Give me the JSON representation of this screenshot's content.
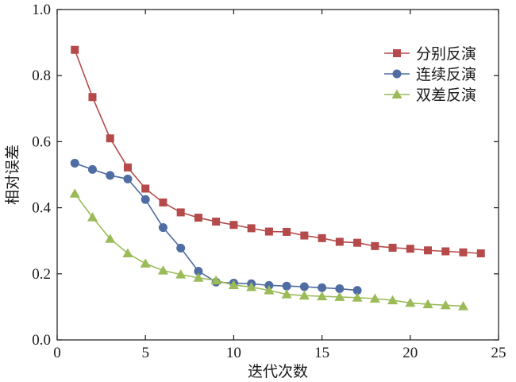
{
  "chart_data": {
    "type": "line",
    "title": "",
    "xlabel": "迭代次数",
    "ylabel": "相对误差",
    "xlim": [
      0,
      25
    ],
    "ylim": [
      0.0,
      1.0
    ],
    "xticks": [
      "0",
      "5",
      "10",
      "15",
      "20",
      "25"
    ],
    "yticks": [
      "0.0",
      "0.2",
      "0.4",
      "0.6",
      "0.8",
      "1.0"
    ],
    "grid": false,
    "legend_position": "top-right",
    "series": [
      {
        "name": "分别反演",
        "marker": "square",
        "color": "#b54a4b",
        "x": [
          1,
          2,
          3,
          4,
          5,
          6,
          7,
          8,
          9,
          10,
          11,
          12,
          13,
          14,
          15,
          16,
          17,
          18,
          19,
          20,
          21,
          22,
          23,
          24
        ],
        "y": [
          0.878,
          0.735,
          0.61,
          0.522,
          0.458,
          0.416,
          0.386,
          0.37,
          0.358,
          0.348,
          0.338,
          0.328,
          0.327,
          0.316,
          0.308,
          0.297,
          0.294,
          0.284,
          0.279,
          0.276,
          0.271,
          0.268,
          0.265,
          0.262
        ]
      },
      {
        "name": "连续反演",
        "marker": "circle",
        "color": "#4f6ca3",
        "x": [
          1,
          2,
          3,
          4,
          5,
          6,
          7,
          8,
          9,
          10,
          11,
          12,
          13,
          14,
          15,
          16,
          17
        ],
        "y": [
          0.535,
          0.516,
          0.498,
          0.487,
          0.425,
          0.34,
          0.278,
          0.208,
          0.175,
          0.172,
          0.17,
          0.165,
          0.163,
          0.161,
          0.158,
          0.155,
          0.15
        ]
      },
      {
        "name": "双差反演",
        "marker": "triangle",
        "color": "#9bbb59",
        "x": [
          1,
          2,
          3,
          4,
          5,
          6,
          7,
          8,
          9,
          10,
          11,
          12,
          13,
          14,
          15,
          16,
          17,
          18,
          19,
          20,
          21,
          22,
          23
        ],
        "y": [
          0.443,
          0.371,
          0.306,
          0.262,
          0.231,
          0.21,
          0.198,
          0.188,
          0.18,
          0.166,
          0.16,
          0.15,
          0.138,
          0.134,
          0.132,
          0.13,
          0.128,
          0.125,
          0.12,
          0.112,
          0.108,
          0.105,
          0.102
        ]
      }
    ]
  }
}
